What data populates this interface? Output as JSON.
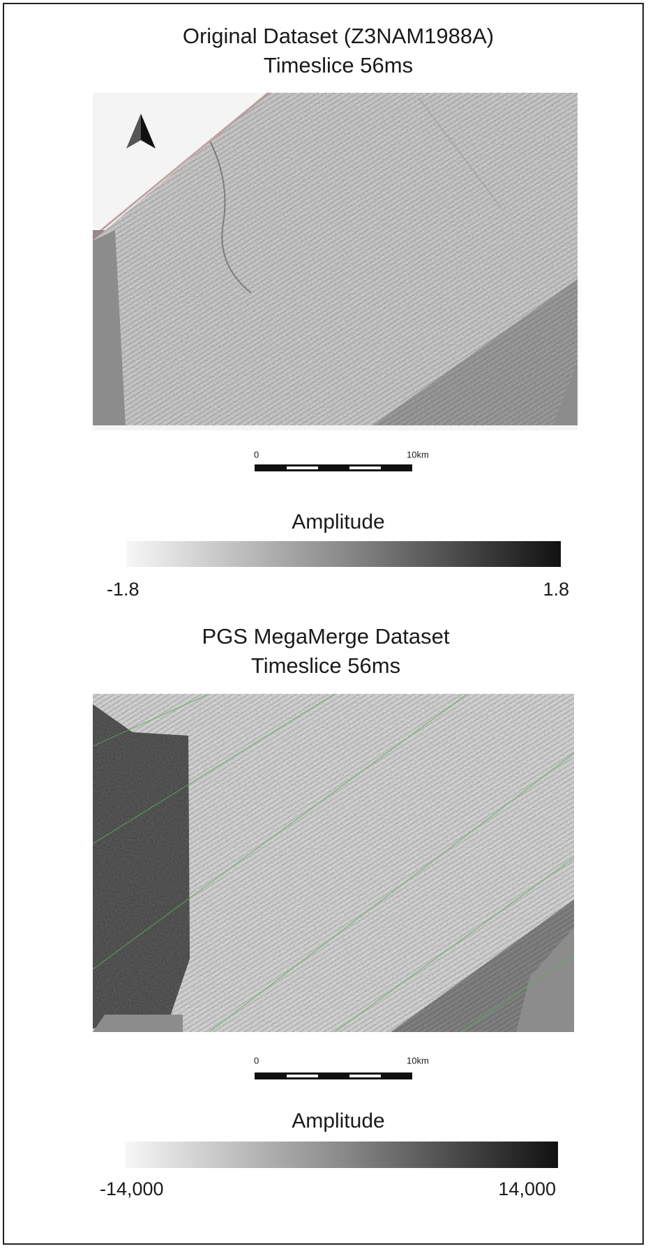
{
  "panels": [
    {
      "title_lines": [
        "Original Dataset (Z3NAM1988A)",
        "Timeslice 56ms"
      ],
      "scale_bar": {
        "start_label": "0",
        "end_label": "10km"
      },
      "colorbar": {
        "title": "Amplitude",
        "min_label": "-1.8",
        "max_label": "1.8"
      }
    },
    {
      "title_lines": [
        "PGS MegaMerge Dataset",
        "Timeslice 56ms"
      ],
      "scale_bar": {
        "start_label": "0",
        "end_label": "10km"
      },
      "colorbar": {
        "title": "Amplitude",
        "min_label": "-14,000",
        "max_label": "14,000"
      }
    }
  ]
}
